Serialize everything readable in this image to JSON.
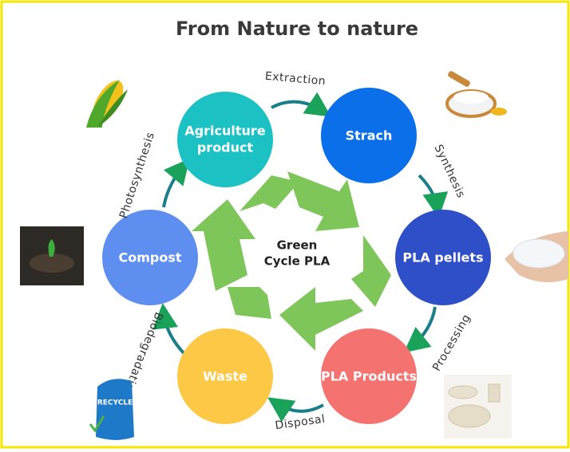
{
  "header": {
    "title": "From Nature to nature"
  },
  "center": {
    "lines": [
      "Green",
      "Cycle PLA"
    ]
  },
  "nodes": [
    {
      "lines": [
        "Agriculture",
        "product"
      ]
    },
    {
      "lines": [
        "Strach"
      ]
    },
    {
      "lines": [
        "PLA pellets"
      ]
    },
    {
      "lines": [
        "PLA Products"
      ]
    },
    {
      "lines": [
        "Waste"
      ]
    },
    {
      "lines": [
        "Compost"
      ]
    }
  ],
  "edges": [
    {
      "label": "Extraction"
    },
    {
      "label": "Synthesis"
    },
    {
      "label": "Processing"
    },
    {
      "label": "Disposal"
    },
    {
      "label": "Biodegradation"
    },
    {
      "label": "Photosynthesis"
    }
  ],
  "images": {
    "bag_text": "RECYCLE"
  }
}
